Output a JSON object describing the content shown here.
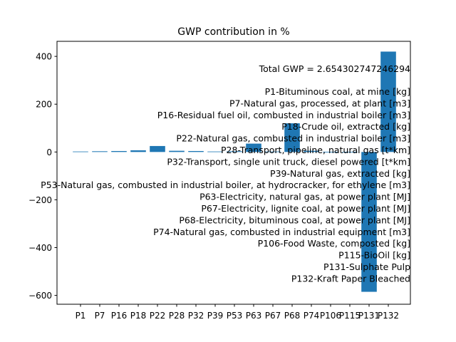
{
  "chart_data": {
    "type": "bar",
    "title": "GWP contribution in %",
    "xlabel": "",
    "ylabel": "",
    "categories": [
      "P1",
      "P7",
      "P16",
      "P18",
      "P22",
      "P28",
      "P32",
      "P39",
      "P53",
      "P63",
      "P67",
      "P68",
      "P74",
      "P106",
      "P115",
      "P131",
      "P132"
    ],
    "values": [
      2,
      3,
      4,
      7,
      25,
      5,
      4,
      2,
      3,
      35,
      2,
      120,
      5,
      1,
      1,
      -585,
      420
    ],
    "ylim": [
      -637,
      463
    ],
    "yticks": [
      -600,
      -400,
      -200,
      0,
      200,
      400
    ],
    "ytick_labels": [
      "−600",
      "−400",
      "−200",
      "0",
      "200",
      "400"
    ],
    "grid": false,
    "bar_color": "#1f77b4",
    "annotation": "Total GWP = 2.654302747246294",
    "legend_entries": [
      "P1-Bituminous coal, at mine [kg]",
      "P7-Natural gas, processed, at plant [m3]",
      "P16-Residual fuel oil, combusted in industrial boiler [m3]",
      "P18-Crude oil, extracted [kg]",
      "P22-Natural gas, combusted in industrial boiler [m3]",
      "P28-Transport, pipeline, natural gas [t*km]",
      "P32-Transport, single unit truck, diesel powered [t*km]",
      "P39-Natural gas, extracted [kg]",
      "P53-Natural gas, combusted in industrial boiler, at hydrocracker, for ethylene [m3]",
      "P63-Electricity, natural gas, at power plant [MJ]",
      "P67-Electricity, lignite coal, at power plant [MJ]",
      "P68-Electricity, bituminous coal, at power plant [MJ]",
      "P74-Natural gas, combusted in industrial equipment [m3]",
      "P106-Food Waste, composted [kg]",
      "P115-BioOil [kg]",
      "P131-Sulphate Pulp",
      "P132-Kraft Paper Bleached"
    ]
  }
}
